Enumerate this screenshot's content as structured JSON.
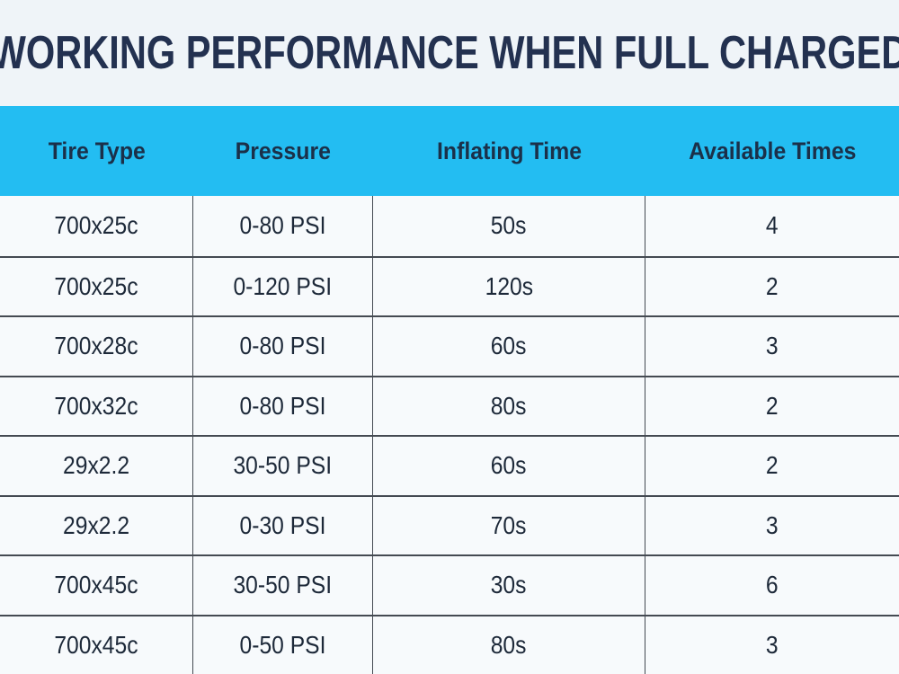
{
  "title": "WORKING PERFORMANCE WHEN FULL CHARGED",
  "table": {
    "columns": [
      "Tire Type",
      "Pressure",
      "Inflating Time",
      "Available Times"
    ],
    "rows": [
      [
        "700x25c",
        "0-80 PSI",
        "50s",
        "4"
      ],
      [
        "700x25c",
        "0-120 PSI",
        "120s",
        "2"
      ],
      [
        "700x28c",
        "0-80 PSI",
        "60s",
        "3"
      ],
      [
        "700x32c",
        "0-80 PSI",
        "80s",
        "2"
      ],
      [
        "29x2.2",
        "30-50 PSI",
        "60s",
        "2"
      ],
      [
        "29x2.2",
        "0-30 PSI",
        "70s",
        "3"
      ],
      [
        "700x45c",
        "30-50 PSI",
        "30s",
        "6"
      ],
      [
        "700x45c",
        "0-50 PSI",
        "80s",
        "3"
      ]
    ]
  },
  "colors": {
    "page_background": "#eff4f8",
    "header_background": "#23bdf2",
    "row_background": "#f7fafc",
    "divider": "#444a52",
    "title_text": "#233150",
    "header_text": "#1b3049",
    "cell_text": "#1d2939"
  }
}
